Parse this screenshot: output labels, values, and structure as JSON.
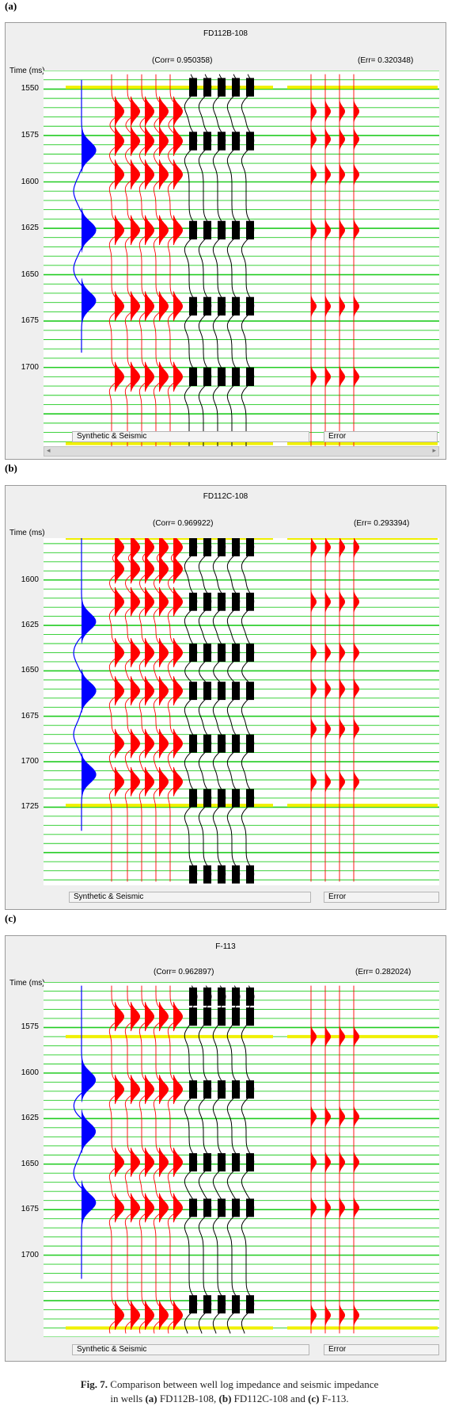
{
  "panels": [
    {
      "label": "(a)",
      "title": "FD112B-108",
      "corr": "(Corr= 0.950358)",
      "err": "(Err= 0.320348)",
      "ylabel": "Time (ms)",
      "ticks": [
        "1550",
        "1575",
        "1600",
        "1625",
        "1650",
        "1675",
        "1700"
      ],
      "tab_left": "Synthetic & Seismic",
      "tab_right": "Error"
    },
    {
      "label": "(b)",
      "title": "FD112C-108",
      "corr": "(Corr= 0.969922)",
      "err": "(Err= 0.293394)",
      "ylabel": "Time (ms)",
      "ticks": [
        "1600",
        "1625",
        "1650",
        "1675",
        "1700",
        "1725"
      ],
      "tab_left": "Synthetic & Seismic",
      "tab_right": "Error"
    },
    {
      "label": "(c)",
      "title": "F-113",
      "corr": "(Corr= 0.962897)",
      "err": "(Err= 0.282024)",
      "ylabel": "Time (ms)",
      "ticks": [
        "1575",
        "1600",
        "1625",
        "1650",
        "1675",
        "1700"
      ],
      "tab_left": "Synthetic & Seismic",
      "tab_right": "Error"
    }
  ],
  "caption": {
    "fig": "Fig. 7.",
    "text1": " Comparison between well log impedance and seismic impedance",
    "text2_a": "in wells ",
    "a": "(a)",
    "w1": " FD112B-108, ",
    "b": "(b)",
    "w2": " FD112C-108 and ",
    "c": "(c)",
    "w3": " F-113."
  },
  "colors": {
    "synthetic": "#0000ff",
    "seismic": "#ff0000",
    "impedance": "#000000",
    "grid": "#22cc22",
    "horizon": "#f0f000"
  },
  "chart_data": [
    {
      "type": "line",
      "title": "FD112B-108",
      "ylabel": "Time (ms)",
      "ylim": [
        1540,
        1745
      ],
      "yticks": [
        1550,
        1575,
        1600,
        1625,
        1650,
        1675,
        1700
      ],
      "horizons_ms": [
        1549,
        1741
      ],
      "corr": 0.950358,
      "err": 0.320348,
      "synthetic_peaks_ms": [
        1583,
        1626,
        1664
      ],
      "synthetic_troughs_ms": [
        1605,
        1647
      ],
      "synthetic_range_ms": [
        1545,
        1692
      ],
      "seismic_event_ms": [
        1562,
        1578,
        1596,
        1626,
        1667,
        1705
      ],
      "impedance_event_ms": [
        1549,
        1578,
        1626,
        1667,
        1705
      ],
      "error_event_ms": [
        1562,
        1577,
        1596,
        1626,
        1667,
        1705
      ],
      "legend": [
        "Synthetic & Seismic",
        "Error"
      ]
    },
    {
      "type": "line",
      "title": "FD112C-108",
      "ylabel": "Time (ms)",
      "ylim": [
        1577,
        1768
      ],
      "yticks": [
        1600,
        1625,
        1650,
        1675,
        1700,
        1725
      ],
      "horizons_ms": [
        1577,
        1724
      ],
      "corr": 0.969922,
      "err": 0.293394,
      "synthetic_peaks_ms": [
        1623,
        1661,
        1707
      ],
      "synthetic_troughs_ms": [
        1640,
        1685
      ],
      "synthetic_range_ms": [
        1577,
        1738
      ],
      "seismic_event_ms": [
        1582,
        1594,
        1612,
        1640,
        1661,
        1690,
        1711
      ],
      "impedance_event_ms": [
        1582,
        1612,
        1640,
        1661,
        1690,
        1720,
        1762
      ],
      "error_event_ms": [
        1582,
        1612,
        1640,
        1660,
        1682,
        1711
      ],
      "legend": [
        "Synthetic & Seismic",
        "Error"
      ]
    },
    {
      "type": "line",
      "title": "F-113",
      "ylabel": "Time (ms)",
      "ylim": [
        1550,
        1745
      ],
      "yticks": [
        1575,
        1600,
        1625,
        1650,
        1675,
        1700
      ],
      "horizons_ms": [
        1580,
        1740
      ],
      "corr": 0.962897,
      "err": 0.282024,
      "synthetic_peaks_ms": [
        1604,
        1632,
        1671
      ],
      "synthetic_troughs_ms": [
        1618,
        1655
      ],
      "synthetic_range_ms": [
        1552,
        1713
      ],
      "seismic_event_ms": [
        1569,
        1609,
        1649,
        1674,
        1733
      ],
      "impedance_event_ms": [
        1558,
        1569,
        1609,
        1649,
        1674,
        1727
      ],
      "error_event_ms": [
        1580,
        1624,
        1649,
        1674,
        1733
      ],
      "legend": [
        "Synthetic & Seismic",
        "Error"
      ]
    }
  ]
}
